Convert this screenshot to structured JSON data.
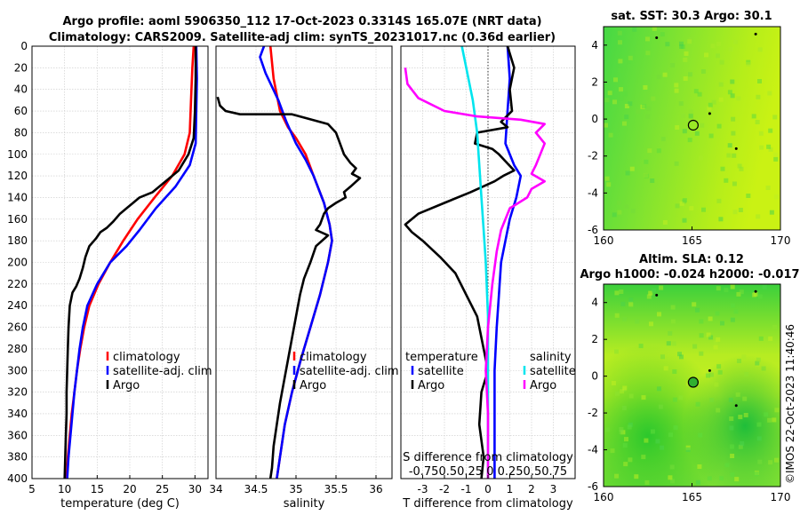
{
  "header": {
    "title_line1": "Argo profile: aoml 5906350_112 17-Oct-2023 0.3314S 165.07E (NRT data)",
    "title_line2": "Climatology: CARS2009. Satellite-adj clim: synTS_20231017.nc (0.36d earlier)"
  },
  "colors": {
    "climatology": "#ff0000",
    "satellite": "#0000ff",
    "argo": "#000000",
    "t_satellite": "#0000ff",
    "t_argo": "#000000",
    "s_satellite": "#00e5ee",
    "s_argo": "#ff00ff",
    "map_green": "#3fd23f",
    "map_yellow": "#c8f000"
  },
  "depth_ticks": [
    "0",
    "20",
    "40",
    "60",
    "80",
    "100",
    "120",
    "140",
    "160",
    "180",
    "200",
    "220",
    "240",
    "260",
    "280",
    "300",
    "320",
    "340",
    "360",
    "380",
    "400"
  ],
  "chart_data": [
    {
      "type": "line",
      "name": "temperature-profile",
      "xlabel": "temperature (deg C)",
      "xlim": [
        5,
        32
      ],
      "ylim": [
        0,
        400
      ],
      "xticks": [
        "5",
        "10",
        "15",
        "20",
        "25",
        "30"
      ],
      "xtick_values": [
        5,
        10,
        15,
        20,
        25,
        30
      ],
      "legend": [
        "climatology",
        "satellite-adj. clim",
        "Argo"
      ],
      "series": [
        {
          "name": "climatology",
          "color": "#ff0000",
          "points": [
            [
              29.8,
              0
            ],
            [
              29.6,
              20
            ],
            [
              29.4,
              50
            ],
            [
              29.2,
              80
            ],
            [
              28.4,
              100
            ],
            [
              26.5,
              120
            ],
            [
              23.8,
              140
            ],
            [
              21.2,
              160
            ],
            [
              19.0,
              180
            ],
            [
              17.0,
              200
            ],
            [
              15.2,
              220
            ],
            [
              13.8,
              240
            ],
            [
              13.0,
              260
            ],
            [
              12.4,
              280
            ],
            [
              11.9,
              300
            ],
            [
              11.5,
              320
            ],
            [
              11.1,
              340
            ],
            [
              10.8,
              360
            ],
            [
              10.5,
              380
            ],
            [
              10.3,
              400
            ]
          ]
        },
        {
          "name": "satellite-adj. clim",
          "color": "#0000ff",
          "points": [
            [
              30.2,
              0
            ],
            [
              30.3,
              30
            ],
            [
              30.2,
              60
            ],
            [
              30.1,
              90
            ],
            [
              29.2,
              110
            ],
            [
              27.0,
              130
            ],
            [
              24.0,
              150
            ],
            [
              21.5,
              170
            ],
            [
              19.5,
              185
            ],
            [
              17.0,
              200
            ],
            [
              15.0,
              220
            ],
            [
              13.5,
              240
            ],
            [
              12.8,
              260
            ],
            [
              12.3,
              280
            ],
            [
              11.9,
              300
            ],
            [
              11.5,
              320
            ],
            [
              11.2,
              340
            ],
            [
              10.9,
              360
            ],
            [
              10.6,
              380
            ],
            [
              10.4,
              400
            ]
          ]
        },
        {
          "name": "Argo",
          "color": "#000000",
          "points": [
            [
              30.1,
              0
            ],
            [
              30.1,
              30
            ],
            [
              30.0,
              60
            ],
            [
              29.8,
              85
            ],
            [
              29.0,
              100
            ],
            [
              27.5,
              115
            ],
            [
              25.5,
              125
            ],
            [
              23.5,
              135
            ],
            [
              21.5,
              140
            ],
            [
              20.5,
              145
            ],
            [
              19.5,
              150
            ],
            [
              18.5,
              155
            ],
            [
              17.5,
              162
            ],
            [
              16.5,
              168
            ],
            [
              15.5,
              172
            ],
            [
              14.8,
              178
            ],
            [
              13.8,
              185
            ],
            [
              13.2,
              195
            ],
            [
              12.8,
              205
            ],
            [
              12.3,
              215
            ],
            [
              11.8,
              222
            ],
            [
              11.2,
              228
            ],
            [
              10.8,
              240
            ],
            [
              10.6,
              260
            ],
            [
              10.5,
              280
            ],
            [
              10.4,
              300
            ],
            [
              10.3,
              320
            ],
            [
              10.3,
              340
            ],
            [
              10.2,
              360
            ],
            [
              10.1,
              380
            ],
            [
              10.0,
              400
            ]
          ]
        }
      ]
    },
    {
      "type": "line",
      "name": "salinity-profile",
      "xlabel": "salinity",
      "xlim": [
        34,
        36.2
      ],
      "ylim": [
        0,
        400
      ],
      "xticks": [
        "34",
        "34.5",
        "35",
        "35.5",
        "36"
      ],
      "xtick_values": [
        34,
        34.5,
        35,
        35.5,
        36
      ],
      "legend": [
        "climatology",
        "satellite-adj. clim",
        "Argo"
      ],
      "series": [
        {
          "name": "climatology",
          "color": "#ff0000",
          "points": [
            [
              34.68,
              0
            ],
            [
              34.72,
              30
            ],
            [
              34.8,
              60
            ],
            [
              34.9,
              75
            ],
            [
              35.0,
              85
            ],
            [
              35.12,
              100
            ],
            [
              35.22,
              120
            ],
            [
              35.35,
              145
            ],
            [
              35.42,
              165
            ],
            [
              35.45,
              180
            ],
            [
              35.4,
              200
            ],
            [
              35.3,
              230
            ],
            [
              35.18,
              260
            ],
            [
              35.06,
              290
            ],
            [
              34.95,
              320
            ],
            [
              34.86,
              350
            ],
            [
              34.8,
              380
            ],
            [
              34.76,
              400
            ]
          ]
        },
        {
          "name": "satellite-adj. clim",
          "color": "#0000ff",
          "points": [
            [
              34.6,
              0
            ],
            [
              34.55,
              10
            ],
            [
              34.62,
              25
            ],
            [
              34.78,
              50
            ],
            [
              34.88,
              70
            ],
            [
              35.0,
              90
            ],
            [
              35.12,
              105
            ],
            [
              35.22,
              120
            ],
            [
              35.35,
              145
            ],
            [
              35.42,
              165
            ],
            [
              35.45,
              180
            ],
            [
              35.4,
              200
            ],
            [
              35.3,
              230
            ],
            [
              35.18,
              260
            ],
            [
              35.06,
              290
            ],
            [
              34.95,
              320
            ],
            [
              34.86,
              350
            ],
            [
              34.8,
              380
            ],
            [
              34.76,
              400
            ]
          ]
        },
        {
          "name": "Argo",
          "color": "#000000",
          "points": [
            [
              34.02,
              47
            ],
            [
              34.05,
              55
            ],
            [
              34.12,
              60
            ],
            [
              34.3,
              63
            ],
            [
              34.7,
              63
            ],
            [
              34.95,
              63
            ],
            [
              35.15,
              67
            ],
            [
              35.4,
              72
            ],
            [
              35.5,
              80
            ],
            [
              35.55,
              90
            ],
            [
              35.6,
              100
            ],
            [
              35.68,
              108
            ],
            [
              35.75,
              113
            ],
            [
              35.7,
              118
            ],
            [
              35.8,
              122
            ],
            [
              35.68,
              130
            ],
            [
              35.6,
              135
            ],
            [
              35.62,
              140
            ],
            [
              35.5,
              145
            ],
            [
              35.4,
              150
            ],
            [
              35.35,
              155
            ],
            [
              35.3,
              165
            ],
            [
              35.25,
              170
            ],
            [
              35.4,
              175
            ],
            [
              35.25,
              185
            ],
            [
              35.18,
              200
            ],
            [
              35.1,
              215
            ],
            [
              35.05,
              230
            ],
            [
              35.0,
              250
            ],
            [
              34.95,
              270
            ],
            [
              34.9,
              290
            ],
            [
              34.85,
              310
            ],
            [
              34.8,
              330
            ],
            [
              34.76,
              350
            ],
            [
              34.72,
              370
            ],
            [
              34.7,
              390
            ],
            [
              34.68,
              400
            ]
          ]
        }
      ]
    },
    {
      "type": "line",
      "name": "difference-profile",
      "xlabel": "T difference from climatology",
      "top_label": "S difference from climatology",
      "top_ticks": "-0.750.50.25  0  0.250.50.75",
      "xlim": [
        -4,
        4
      ],
      "ylim": [
        0,
        400
      ],
      "xticks": [
        "-3",
        "-2",
        "-1",
        "0",
        "1",
        "2",
        "3"
      ],
      "xtick_values": [
        -3,
        -2,
        -1,
        0,
        1,
        2,
        3
      ],
      "legend_titles": [
        "temperature",
        "salinity"
      ],
      "legend": [
        "satellite",
        "Argo",
        "satellite",
        "Argo"
      ],
      "series": [
        {
          "name": "T satellite",
          "color": "#0000ff",
          "points": [
            [
              0.9,
              0
            ],
            [
              1.0,
              30
            ],
            [
              0.9,
              60
            ],
            [
              0.8,
              90
            ],
            [
              1.2,
              110
            ],
            [
              1.5,
              120
            ],
            [
              1.3,
              140
            ],
            [
              1.0,
              160
            ],
            [
              0.8,
              180
            ],
            [
              0.6,
              200
            ],
            [
              0.5,
              230
            ],
            [
              0.4,
              260
            ],
            [
              0.3,
              300
            ],
            [
              0.3,
              340
            ],
            [
              0.3,
              400
            ]
          ]
        },
        {
          "name": "T Argo",
          "color": "#000000",
          "points": [
            [
              0.9,
              0
            ],
            [
              1.2,
              20
            ],
            [
              1.0,
              40
            ],
            [
              1.1,
              60
            ],
            [
              0.6,
              70
            ],
            [
              0.9,
              75
            ],
            [
              -0.5,
              80
            ],
            [
              -0.6,
              90
            ],
            [
              0.2,
              95
            ],
            [
              0.5,
              100
            ],
            [
              1.2,
              115
            ],
            [
              0.7,
              120
            ],
            [
              0.3,
              125
            ],
            [
              -0.8,
              135
            ],
            [
              -2.0,
              145
            ],
            [
              -3.2,
              155
            ],
            [
              -3.8,
              165
            ],
            [
              -3.5,
              172
            ],
            [
              -3.0,
              180
            ],
            [
              -2.2,
              195
            ],
            [
              -1.5,
              210
            ],
            [
              -1.0,
              230
            ],
            [
              -0.5,
              250
            ],
            [
              -0.2,
              280
            ],
            [
              0.0,
              300
            ],
            [
              -0.3,
              320
            ],
            [
              -0.4,
              350
            ],
            [
              -0.2,
              380
            ],
            [
              -0.3,
              400
            ]
          ]
        },
        {
          "name": "S satellite",
          "color": "#00e5ee",
          "points": [
            [
              -1.2,
              0
            ],
            [
              -1.0,
              20
            ],
            [
              -0.7,
              50
            ],
            [
              -0.5,
              80
            ],
            [
              -0.4,
              110
            ],
            [
              -0.3,
              140
            ],
            [
              -0.2,
              170
            ],
            [
              -0.1,
              200
            ],
            [
              0.0,
              250
            ],
            [
              0.0,
              300
            ],
            [
              0.0,
              400
            ]
          ]
        },
        {
          "name": "S Argo",
          "color": "#ff00ff",
          "points": [
            [
              -3.8,
              20
            ],
            [
              -3.7,
              35
            ],
            [
              -3.2,
              48
            ],
            [
              -2.0,
              60
            ],
            [
              -0.5,
              65
            ],
            [
              1.5,
              68
            ],
            [
              2.6,
              72
            ],
            [
              2.2,
              80
            ],
            [
              2.6,
              90
            ],
            [
              2.4,
              100
            ],
            [
              2.2,
              110
            ],
            [
              2.0,
              118
            ],
            [
              2.6,
              125
            ],
            [
              2.0,
              132
            ],
            [
              1.8,
              140
            ],
            [
              1.0,
              150
            ],
            [
              0.6,
              170
            ],
            [
              0.4,
              190
            ],
            [
              0.2,
              220
            ],
            [
              0.0,
              260
            ],
            [
              -0.1,
              300
            ],
            [
              0.0,
              340
            ],
            [
              0.0,
              400
            ]
          ]
        }
      ]
    },
    {
      "type": "heatmap",
      "name": "sst-map",
      "title": "sat. SST: 30.3 Argo: 30.1",
      "xlim": [
        160,
        170
      ],
      "ylim": [
        -6,
        5
      ],
      "xticks": [
        "160",
        "165",
        "170"
      ],
      "xtick_values": [
        160,
        165,
        170
      ],
      "yticks": [
        "4",
        "2",
        "0",
        "-2",
        "-4",
        "-6"
      ],
      "ytick_values": [
        4,
        2,
        0,
        -2,
        -4,
        -6
      ],
      "marker": [
        165.07,
        -0.3314
      ]
    },
    {
      "type": "heatmap",
      "name": "sla-map",
      "title": "Altim. SLA: 0.12",
      "subtitle": "Argo h1000: -0.024 h2000: -0.017",
      "xlim": [
        160,
        170
      ],
      "ylim": [
        -6,
        5
      ],
      "xticks": [
        "160",
        "165",
        "170"
      ],
      "xtick_values": [
        160,
        165,
        170
      ],
      "yticks": [
        "4",
        "2",
        "0",
        "-2",
        "-4",
        "-6"
      ],
      "ytick_values": [
        4,
        2,
        0,
        -2,
        -4,
        -6
      ],
      "marker": [
        165.07,
        -0.3314
      ]
    }
  ],
  "watermark": "©IMOS 22-Oct-2023 11:40:46"
}
